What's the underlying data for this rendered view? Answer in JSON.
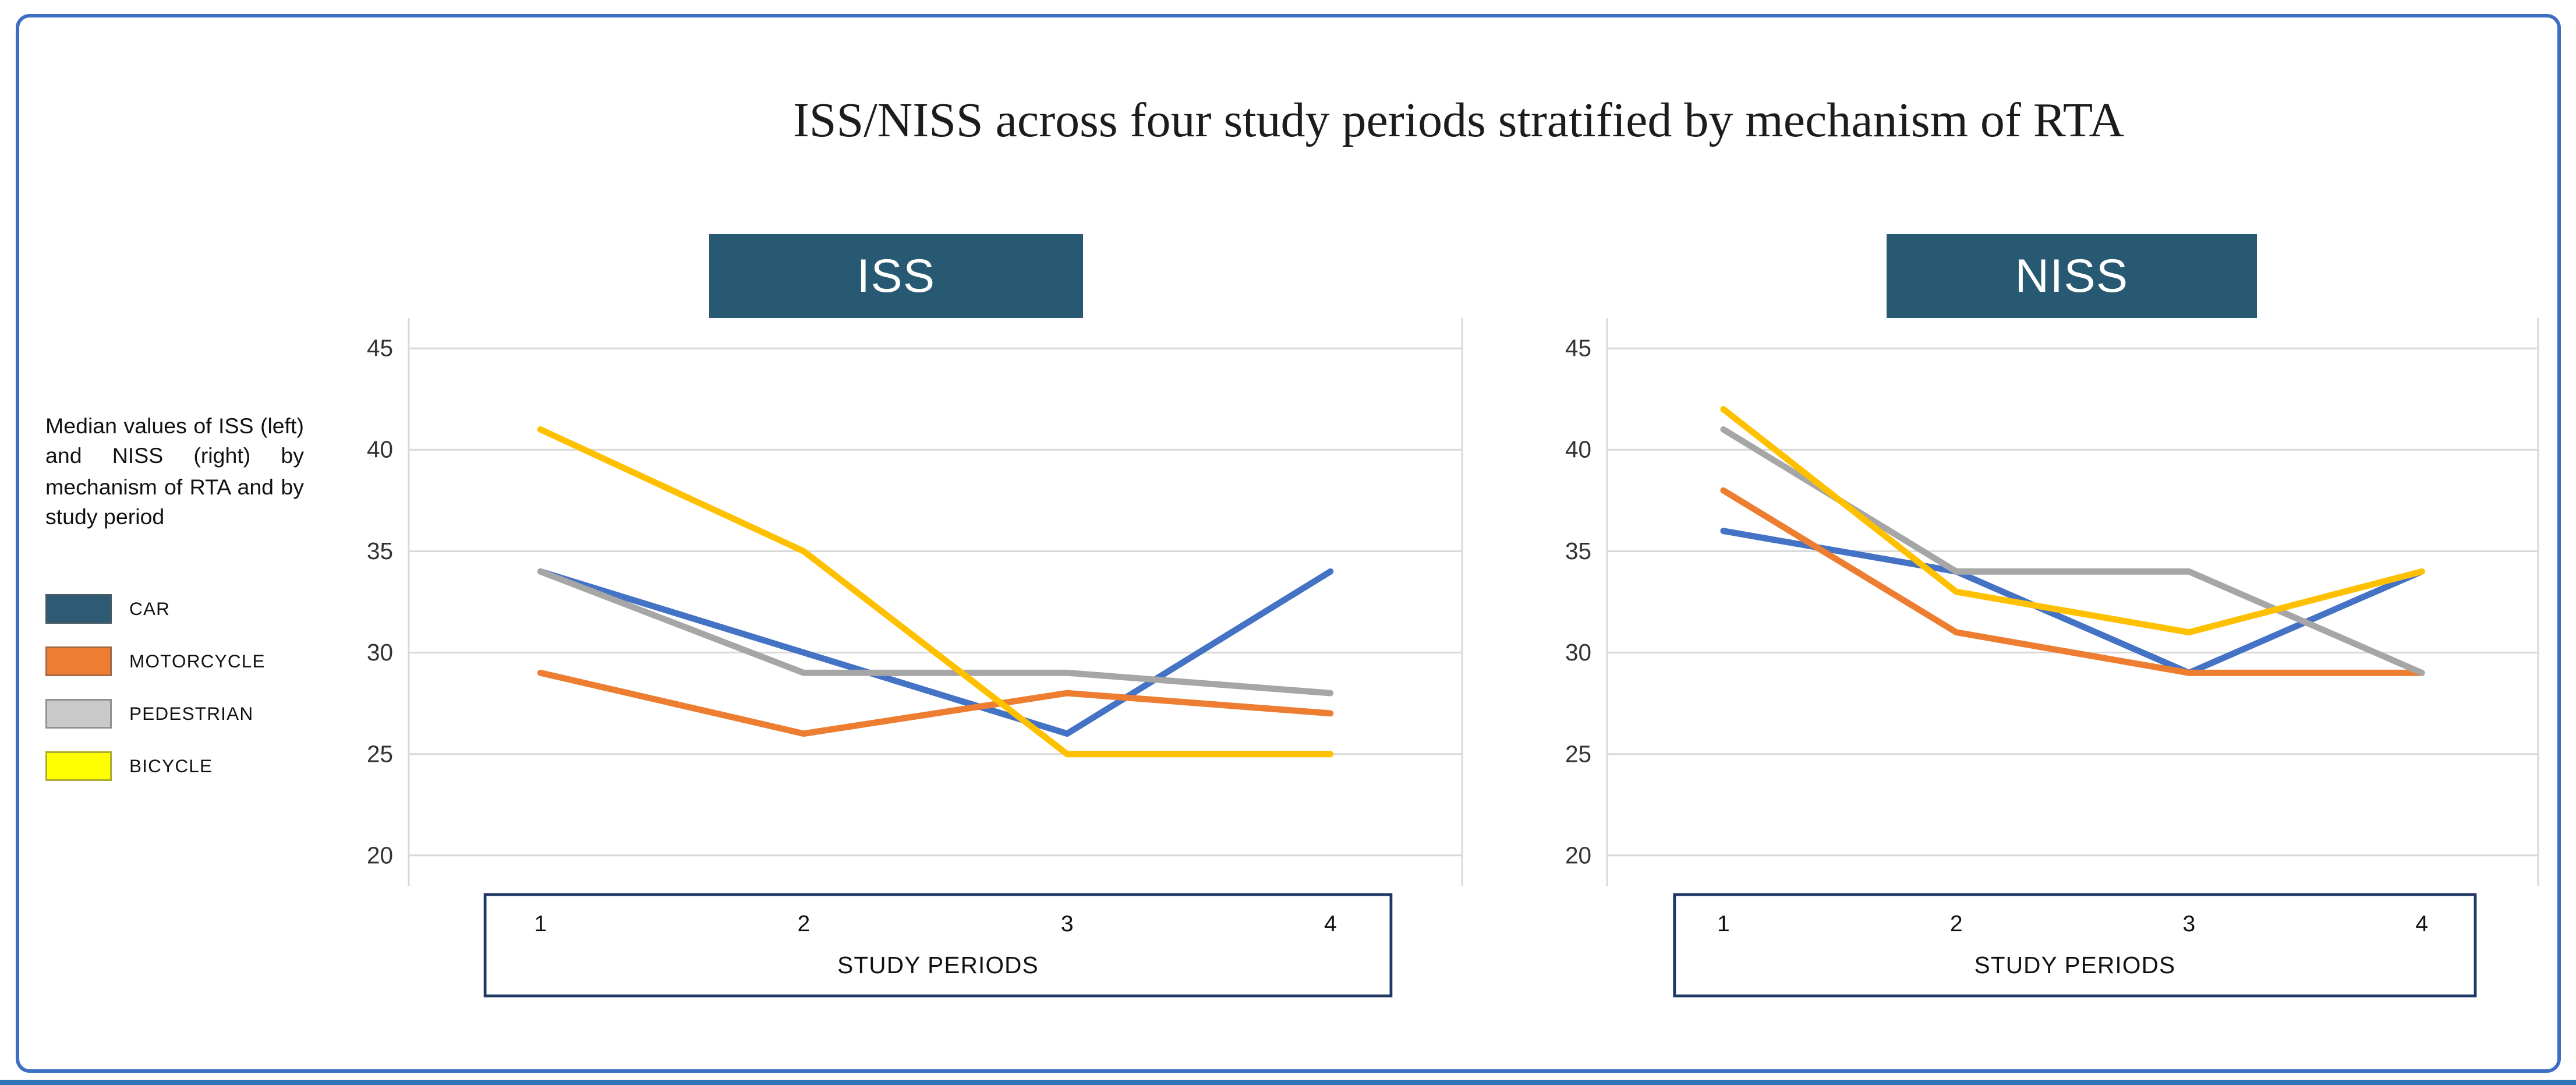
{
  "figure": {
    "title": "ISS/NISS across four study periods stratified by mechanism of RTA",
    "caption": "Median values of ISS (left) and NISS (right) by mechanism of RTA and by study period",
    "accent_border": "#3C6FC4",
    "bottom_rule_color": "#2E74B5",
    "header_bg": "#275A72",
    "header_text_color": "#FFFFFF",
    "grid_color": "#D9D9D9",
    "axis_box_border": "#1F3864"
  },
  "legend": {
    "position": "outside-left",
    "items": [
      {
        "label": "CAR",
        "color": "#2E5B73"
      },
      {
        "label": "MOTORCYCLE",
        "color": "#ED7D31"
      },
      {
        "label": "PEDESTRIAN",
        "color": "#C9C9C9"
      },
      {
        "label": "BICYCLE",
        "color": "#FFFF00"
      }
    ]
  },
  "chart_data": [
    {
      "type": "line",
      "title": "ISS",
      "categories": [
        "1",
        "2",
        "3",
        "4"
      ],
      "xlabel": "STUDY PERIODS",
      "yticks": [
        20,
        25,
        30,
        35,
        40,
        45
      ],
      "ylim": [
        18.5,
        46.5
      ],
      "grid": true,
      "series": [
        {
          "name": "CAR",
          "color": "#4472C4",
          "values": [
            34,
            30,
            26,
            34
          ]
        },
        {
          "name": "MOTORCYCLE",
          "color": "#ED7D31",
          "values": [
            29,
            26,
            28,
            27
          ]
        },
        {
          "name": "PEDESTRIAN",
          "color": "#A6A6A6",
          "values": [
            34,
            29,
            29,
            28
          ]
        },
        {
          "name": "BICYCLE",
          "color": "#FFC000",
          "values": [
            41,
            35,
            25,
            25
          ]
        }
      ]
    },
    {
      "type": "line",
      "title": "NISS",
      "categories": [
        "1",
        "2",
        "3",
        "4"
      ],
      "xlabel": "STUDY PERIODS",
      "yticks": [
        20,
        25,
        30,
        35,
        40,
        45
      ],
      "ylim": [
        18.5,
        46.5
      ],
      "grid": true,
      "series": [
        {
          "name": "CAR",
          "color": "#4472C4",
          "values": [
            36,
            34,
            29,
            34
          ]
        },
        {
          "name": "MOTORCYCLE",
          "color": "#ED7D31",
          "values": [
            38,
            31,
            29,
            29
          ]
        },
        {
          "name": "PEDESTRIAN",
          "color": "#A6A6A6",
          "values": [
            41,
            34,
            34,
            29
          ]
        },
        {
          "name": "BICYCLE",
          "color": "#FFC000",
          "values": [
            42,
            33,
            31,
            34
          ]
        }
      ]
    }
  ]
}
